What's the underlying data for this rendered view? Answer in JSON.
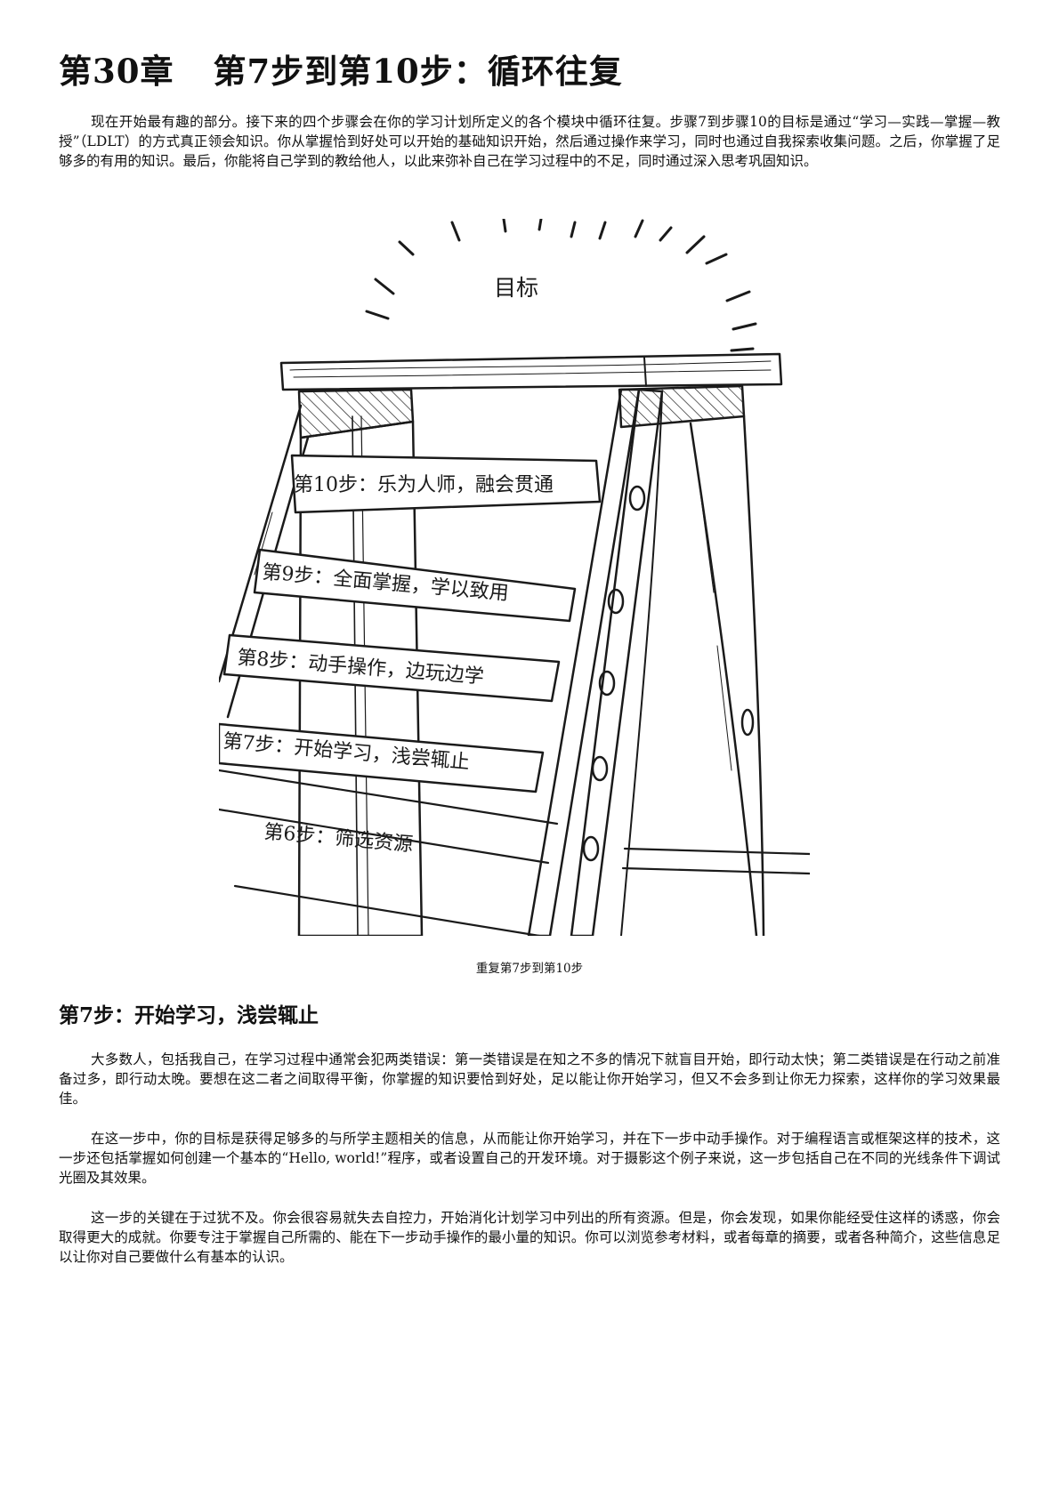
{
  "chapter": {
    "number": "第30章",
    "title": "第7步到第10步：循环往复"
  },
  "intro": "现在开始最有趣的部分。接下来的四个步骤会在你的学习计划所定义的各个模块中循环往复。步骤7到步骤10的目标是通过“学习—实践—掌握—教授”（LDLT）的方式真正领会知识。你从掌握恰到好处可以开始的基础知识开始，然后通过操作来学习，同时也通过自我探索收集问题。之后，你掌握了足够多的有用的知识。最后，你能将自己学到的教给他人，以此来弥补自己在学习过程中的不足，同时通过深入思考巩固知识。",
  "figure": {
    "goal_label": "目标",
    "steps": [
      "第10步：乐为人师，融会贯通",
      "第9步：全面掌握，学以致用",
      "第8步：动手操作，边玩边学",
      "第7步：开始学习，浅尝辄止",
      "第6步：筛选资源"
    ],
    "caption": "重复第7步到第10步"
  },
  "section": {
    "title": "第7步：开始学习，浅尝辄止",
    "paragraphs": [
      "大多数人，包括我自己，在学习过程中通常会犯两类错误：第一类错误是在知之不多的情况下就盲目开始，即行动太快；第二类错误是在行动之前准备过多，即行动太晚。要想在这二者之间取得平衡，你掌握的知识要恰到好处，足以能让你开始学习，但又不会多到让你无力探索，这样你的学习效果最佳。",
      "在这一步中，你的目标是获得足够多的与所学主题相关的信息，从而能让你开始学习，并在下一步中动手操作。对于编程语言或框架这样的技术，这一步还包括掌握如何创建一个基本的“Hello, world!”程序，或者设置自己的开发环境。对于摄影这个例子来说，这一步包括自己在不同的光线条件下调试光圈及其效果。",
      "这一步的关键在于过犹不及。你会很容易就失去自控力，开始消化计划学习中列出的所有资源。但是，你会发现，如果你能经受住这样的诱惑，你会取得更大的成就。你要专注于掌握自己所需的、能在下一步动手操作的最小量的知识。你可以浏览参考材料，或者每章的摘要，或者各种简介，这些信息足以让你对自己要做什么有基本的认识。"
    ]
  }
}
